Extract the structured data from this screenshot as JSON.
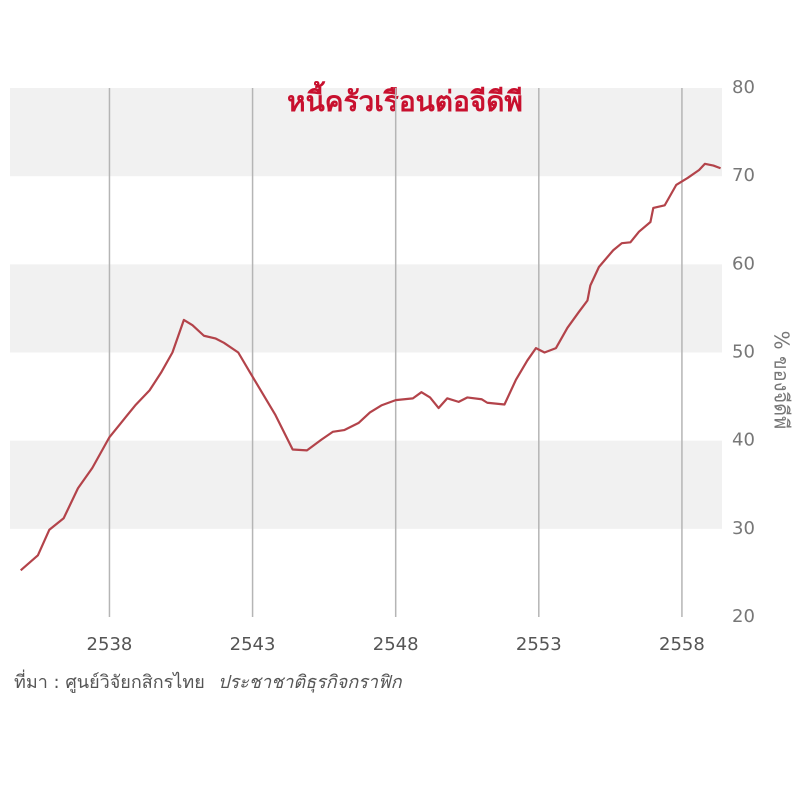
{
  "chart_data": {
    "type": "line",
    "title": "หนี้ครัวเรือนต่อจีดีพี",
    "y_label": "% ของจีดีพี",
    "source": "ที่มา : ศูนย์วิจัยกสิกรไทย",
    "credit": "ประชาชาติธุรกิจกราฟิก",
    "xlim": [
      2534.7,
      2559.4
    ],
    "xticks": [
      2538,
      2543,
      2548,
      2553,
      2558
    ],
    "ylim": [
      20,
      80
    ],
    "yticks": [
      20,
      30,
      40,
      50,
      60,
      70,
      80
    ],
    "grid": true,
    "series": [
      {
        "color": "#b3434a",
        "x": [
          2534.9,
          2535.5,
          2535.9,
          2536.4,
          2536.9,
          2537.4,
          2538.0,
          2538.4,
          2538.9,
          2539.4,
          2539.8,
          2540.2,
          2540.6,
          2540.9,
          2541.3,
          2541.7,
          2542.0,
          2542.5,
          2542.9,
          2543.8,
          2544.4,
          2544.9,
          2545.4,
          2545.8,
          2546.2,
          2546.7,
          2547.1,
          2547.5,
          2548.0,
          2548.6,
          2548.9,
          2549.2,
          2549.5,
          2549.8,
          2550.2,
          2550.5,
          2551.0,
          2551.2,
          2551.8,
          2552.2,
          2552.6,
          2552.9,
          2553.2,
          2553.6,
          2554.0,
          2554.4,
          2554.7,
          2554.8,
          2555.1,
          2555.6,
          2555.9,
          2556.2,
          2556.5,
          2556.9,
          2557.0,
          2557.4,
          2557.8,
          2558.2,
          2558.6,
          2558.8,
          2559.1,
          2559.35
        ],
        "values": [
          25.3,
          27.0,
          29.9,
          31.2,
          34.6,
          36.9,
          40.4,
          42.0,
          44.0,
          45.7,
          47.7,
          50.0,
          53.7,
          53.1,
          51.9,
          51.6,
          51.1,
          50.0,
          47.8,
          42.9,
          39.0,
          38.9,
          40.1,
          41.0,
          41.2,
          42.0,
          43.2,
          44.0,
          44.6,
          44.8,
          45.5,
          44.9,
          43.7,
          44.8,
          44.4,
          44.9,
          44.7,
          44.3,
          44.1,
          46.9,
          49.1,
          50.5,
          50.0,
          50.5,
          52.8,
          54.6,
          55.9,
          57.6,
          59.7,
          61.6,
          62.4,
          62.5,
          63.7,
          64.8,
          66.4,
          66.7,
          69.0,
          69.8,
          70.7,
          71.4,
          71.2,
          70.9
        ]
      }
    ]
  }
}
